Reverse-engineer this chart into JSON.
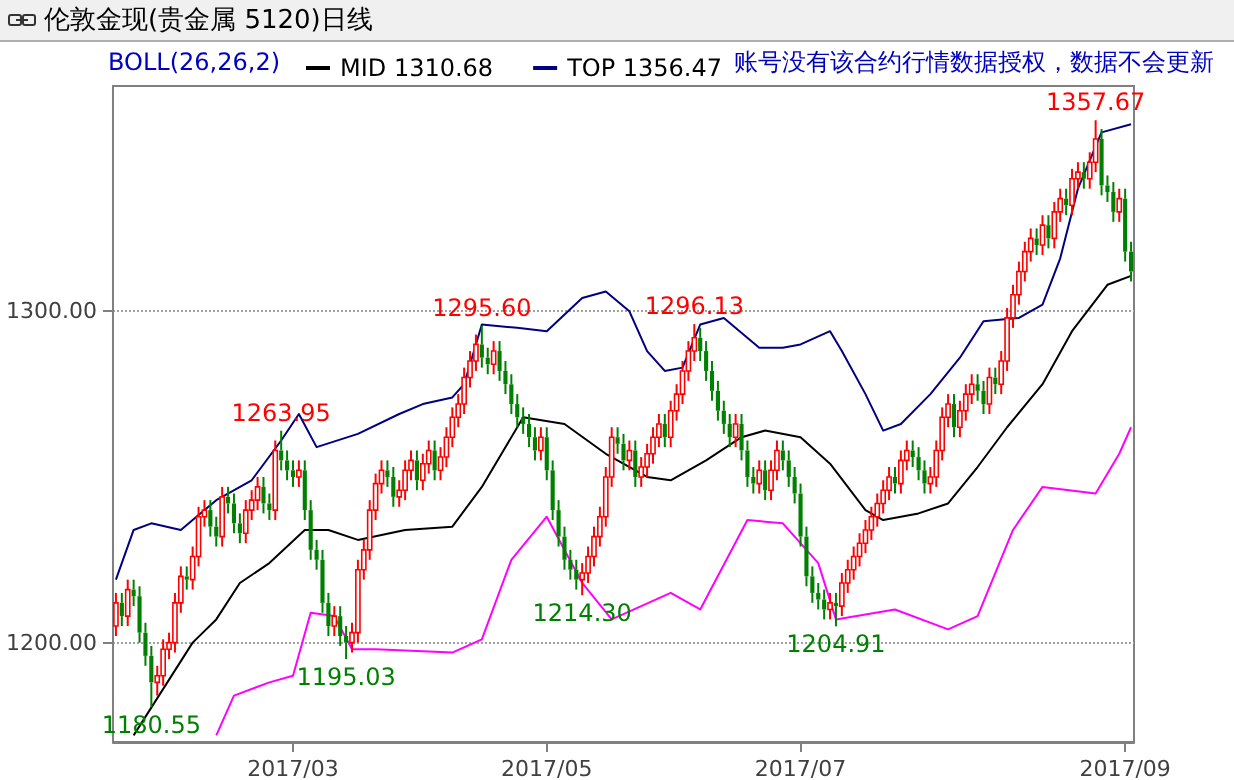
{
  "chart_data": {
    "type": "candlestick",
    "title": "伦敦金现(贵金属 5120)日线",
    "legend_title": "BOLL(26,26,2)",
    "legend": "top left",
    "grid": "y",
    "categories": [
      null,
      null,
      null,
      null,
      null,
      null,
      null,
      null,
      null,
      null,
      null,
      null,
      null,
      null,
      null,
      null,
      null,
      null,
      null,
      null,
      null,
      null,
      null,
      null,
      null,
      null,
      null,
      null,
      null,
      null,
      "2017/03",
      null,
      null,
      null,
      null,
      null,
      null,
      null,
      null,
      null,
      null,
      null,
      null,
      null,
      null,
      null,
      null,
      null,
      null,
      null,
      null,
      null,
      null,
      null,
      null,
      null,
      null,
      null,
      null,
      null,
      null,
      null,
      null,
      null,
      null,
      null,
      null,
      null,
      null,
      null,
      null,
      null,
      null,
      "2017/05",
      null,
      null,
      null,
      null,
      null,
      null,
      null,
      null,
      null,
      null,
      null,
      null,
      null,
      null,
      null,
      null,
      null,
      null,
      null,
      null,
      null,
      null,
      null,
      null,
      null,
      null,
      null,
      null,
      null,
      null,
      null,
      null,
      null,
      null,
      null,
      null,
      null,
      null,
      null,
      null,
      null,
      null,
      "2017/07",
      null,
      null,
      null,
      null,
      null,
      null,
      null,
      null,
      null,
      null,
      null,
      null,
      null,
      null,
      null,
      null,
      null,
      null,
      null,
      null,
      null,
      null,
      null,
      null,
      null,
      null,
      null,
      null,
      null,
      null,
      null,
      null,
      null,
      null,
      null,
      null,
      null,
      null,
      null,
      null,
      null,
      null,
      null,
      null,
      null,
      null,
      null,
      null,
      null,
      null,
      null,
      null,
      null,
      null,
      "2017/09",
      null
    ],
    "ylim": [
      1170,
      1368
    ],
    "yticks": [
      {
        "value": 1200,
        "label": "1200.00"
      },
      {
        "value": 1300,
        "label": "1300.00"
      }
    ],
    "colors": [
      "#ff0000",
      "#008000",
      "#ff0000",
      "#008000",
      "#008000",
      "#008000",
      "#008000",
      "#ff0000",
      "#ff0000",
      "#ff0000",
      "#ff0000",
      "#ff0000",
      "#008000",
      "#ff0000",
      "#ff0000",
      "#ff0000",
      "#008000",
      "#008000",
      "#ff0000",
      "#008000",
      "#008000",
      "#008000",
      "#ff0000",
      "#ff0000",
      "#ff0000",
      "#008000",
      "#008000",
      "#ff0000",
      "#008000",
      "#008000",
      "#008000",
      "#ff0000",
      "#008000",
      "#008000",
      "#008000",
      "#008000",
      "#008000",
      "#ff0000",
      "#008000",
      "#008000",
      "#ff0000",
      "#ff0000",
      "#ff0000",
      "#ff0000",
      "#ff0000",
      "#ff0000",
      "#008000",
      "#008000",
      "#ff0000",
      "#ff0000",
      "#ff0000",
      "#008000",
      "#ff0000",
      "#ff0000",
      "#008000",
      "#ff0000",
      "#ff0000",
      "#ff0000",
      "#ff0000",
      "#ff0000",
      "#ff0000",
      "#ff0000",
      "#008000",
      "#008000",
      "#ff0000",
      "#008000",
      "#008000",
      "#008000",
      "#008000",
      "#008000",
      "#008000",
      "#008000",
      "#ff0000",
      "#008000",
      "#008000",
      "#008000",
      "#008000",
      "#008000",
      "#008000",
      "#ff0000",
      "#ff0000",
      "#ff0000",
      "#ff0000",
      "#ff0000",
      "#ff0000",
      "#008000",
      "#008000",
      "#ff0000",
      "#008000",
      "#ff0000",
      "#ff0000",
      "#ff0000",
      "#ff0000",
      "#008000",
      "#ff0000",
      "#ff0000",
      "#ff0000",
      "#ff0000",
      "#ff0000",
      "#008000",
      "#008000",
      "#008000",
      "#008000",
      "#008000",
      "#008000",
      "#ff0000",
      "#008000",
      "#008000",
      "#008000",
      "#ff0000",
      "#008000",
      "#ff0000",
      "#ff0000",
      "#008000",
      "#008000",
      "#008000",
      "#008000",
      "#008000",
      "#008000",
      "#008000",
      "#008000",
      "#ff0000",
      "#008000",
      "#ff0000",
      "#ff0000",
      "#ff0000",
      "#ff0000",
      "#ff0000",
      "#ff0000",
      "#ff0000",
      "#ff0000",
      "#ff0000",
      "#008000",
      "#ff0000",
      "#ff0000",
      "#008000",
      "#008000",
      "#008000",
      "#ff0000",
      "#ff0000",
      "#ff0000",
      "#ff0000",
      "#008000",
      "#ff0000",
      "#ff0000",
      "#ff0000",
      "#008000",
      "#008000",
      "#ff0000",
      "#008000",
      "#ff0000",
      "#ff0000",
      "#ff0000",
      "#ff0000",
      "#ff0000",
      "#ff0000",
      "#008000",
      "#ff0000",
      "#008000",
      "#ff0000",
      "#ff0000",
      "#008000",
      "#ff0000",
      "#ff0000",
      "#008000",
      "#ff0000",
      "#ff0000",
      "#008000",
      "#008000",
      "#008000",
      "#ff0000",
      "#008000",
      "#008000"
    ],
    "ohlc": [
      [
        1205,
        1215,
        1202,
        1212
      ],
      [
        1212,
        1215,
        1205,
        1208
      ],
      [
        1208,
        1219,
        1205,
        1216
      ],
      [
        1216,
        1219,
        1211,
        1214
      ],
      [
        1214,
        1217,
        1200,
        1203
      ],
      [
        1203,
        1206,
        1193,
        1196
      ],
      [
        1196,
        1199,
        1180.55,
        1188
      ],
      [
        1188,
        1193,
        1184,
        1190
      ],
      [
        1190,
        1201,
        1187,
        1198
      ],
      [
        1198,
        1203,
        1195,
        1200
      ],
      [
        1200,
        1215,
        1197,
        1212
      ],
      [
        1212,
        1223,
        1209,
        1220
      ],
      [
        1220,
        1223,
        1216,
        1219
      ],
      [
        1219,
        1229,
        1216,
        1226
      ],
      [
        1226,
        1241,
        1223,
        1238
      ],
      [
        1238,
        1243,
        1235,
        1240
      ],
      [
        1240,
        1243,
        1232,
        1235
      ],
      [
        1235,
        1238,
        1229,
        1232
      ],
      [
        1232,
        1247,
        1229,
        1244
      ],
      [
        1244,
        1247,
        1239,
        1242
      ],
      [
        1242,
        1245,
        1233,
        1236
      ],
      [
        1236,
        1239,
        1230,
        1233
      ],
      [
        1233,
        1243,
        1230,
        1240
      ],
      [
        1240,
        1246,
        1237,
        1243
      ],
      [
        1243,
        1250,
        1240,
        1247
      ],
      [
        1247,
        1250,
        1239,
        1242
      ],
      [
        1242,
        1245,
        1237,
        1240
      ],
      [
        1240,
        1261,
        1237,
        1258
      ],
      [
        1258,
        1263.95,
        1252,
        1255
      ],
      [
        1255,
        1258,
        1249,
        1252
      ],
      [
        1252,
        1255,
        1247,
        1250
      ],
      [
        1250,
        1255,
        1247,
        1252
      ],
      [
        1252,
        1255,
        1237,
        1240
      ],
      [
        1240,
        1243,
        1225,
        1228
      ],
      [
        1228,
        1231,
        1222,
        1225
      ],
      [
        1225,
        1228,
        1209,
        1212
      ],
      [
        1212,
        1215,
        1202,
        1205
      ],
      [
        1205,
        1211,
        1202,
        1208
      ],
      [
        1208,
        1211,
        1199,
        1202
      ],
      [
        1202,
        1205,
        1195.03,
        1200
      ],
      [
        1200,
        1206,
        1197,
        1203
      ],
      [
        1203,
        1225,
        1200,
        1222
      ],
      [
        1222,
        1231,
        1219,
        1228
      ],
      [
        1228,
        1243,
        1225,
        1240
      ],
      [
        1240,
        1251,
        1237,
        1248
      ],
      [
        1248,
        1255,
        1245,
        1252
      ],
      [
        1252,
        1255,
        1247,
        1250
      ],
      [
        1250,
        1253,
        1241,
        1244
      ],
      [
        1244,
        1249,
        1241,
        1246
      ],
      [
        1246,
        1255,
        1243,
        1252
      ],
      [
        1252,
        1258,
        1249,
        1255
      ],
      [
        1255,
        1258,
        1246,
        1249
      ],
      [
        1249,
        1257,
        1246,
        1254
      ],
      [
        1254,
        1261,
        1251,
        1258
      ],
      [
        1258,
        1261,
        1249,
        1252
      ],
      [
        1252,
        1259,
        1249,
        1256
      ],
      [
        1256,
        1265,
        1253,
        1262
      ],
      [
        1262,
        1271,
        1259,
        1268
      ],
      [
        1268,
        1275,
        1265,
        1272
      ],
      [
        1272,
        1283,
        1269,
        1280
      ],
      [
        1280,
        1288,
        1277,
        1285
      ],
      [
        1285,
        1293,
        1282,
        1290
      ],
      [
        1290,
        1295.6,
        1283,
        1286
      ],
      [
        1286,
        1289,
        1281,
        1284
      ],
      [
        1284,
        1291,
        1281,
        1288
      ],
      [
        1288,
        1291,
        1279,
        1282
      ],
      [
        1282,
        1285,
        1275,
        1278
      ],
      [
        1278,
        1281,
        1269,
        1272
      ],
      [
        1272,
        1275,
        1265,
        1268
      ],
      [
        1268,
        1271,
        1263,
        1266
      ],
      [
        1266,
        1269,
        1259,
        1262
      ],
      [
        1262,
        1265,
        1255,
        1258
      ],
      [
        1258,
        1265,
        1255,
        1262
      ],
      [
        1262,
        1265,
        1249,
        1252
      ],
      [
        1252,
        1255,
        1237,
        1240
      ],
      [
        1240,
        1243,
        1229,
        1232
      ],
      [
        1232,
        1235,
        1222,
        1225
      ],
      [
        1225,
        1228,
        1219,
        1222
      ],
      [
        1222,
        1225,
        1216,
        1219
      ],
      [
        1219,
        1224,
        1214.3,
        1221
      ],
      [
        1221,
        1229,
        1218,
        1226
      ],
      [
        1226,
        1235,
        1223,
        1232
      ],
      [
        1232,
        1241,
        1229,
        1238
      ],
      [
        1238,
        1253,
        1235,
        1250
      ],
      [
        1250,
        1265,
        1247,
        1262
      ],
      [
        1262,
        1265,
        1257,
        1260
      ],
      [
        1260,
        1263,
        1252,
        1255
      ],
      [
        1255,
        1261,
        1252,
        1258
      ],
      [
        1258,
        1261,
        1247,
        1250
      ],
      [
        1250,
        1256,
        1247,
        1253
      ],
      [
        1253,
        1260,
        1250,
        1257
      ],
      [
        1257,
        1265,
        1254,
        1262
      ],
      [
        1262,
        1269,
        1259,
        1266
      ],
      [
        1266,
        1269,
        1259,
        1262
      ],
      [
        1262,
        1273,
        1259,
        1270
      ],
      [
        1270,
        1278,
        1267,
        1275
      ],
      [
        1275,
        1285,
        1272,
        1282
      ],
      [
        1282,
        1291,
        1279,
        1288
      ],
      [
        1288,
        1296.13,
        1285,
        1292
      ],
      [
        1292,
        1295,
        1285,
        1288
      ],
      [
        1288,
        1291,
        1279,
        1282
      ],
      [
        1282,
        1285,
        1273,
        1276
      ],
      [
        1276,
        1279,
        1267,
        1270
      ],
      [
        1270,
        1273,
        1263,
        1266
      ],
      [
        1266,
        1269,
        1259,
        1262
      ],
      [
        1262,
        1269,
        1259,
        1266
      ],
      [
        1266,
        1269,
        1255,
        1258
      ],
      [
        1258,
        1261,
        1247,
        1250
      ],
      [
        1250,
        1253,
        1245,
        1248
      ],
      [
        1248,
        1255,
        1245,
        1252
      ],
      [
        1252,
        1255,
        1243,
        1246
      ],
      [
        1246,
        1255,
        1243,
        1252
      ],
      [
        1252,
        1261,
        1249,
        1258
      ],
      [
        1258,
        1261,
        1252,
        1255
      ],
      [
        1255,
        1258,
        1247,
        1250
      ],
      [
        1250,
        1253,
        1242,
        1245
      ],
      [
        1245,
        1248,
        1229,
        1232
      ],
      [
        1232,
        1235,
        1217,
        1220
      ],
      [
        1220,
        1223,
        1212,
        1215
      ],
      [
        1215,
        1218,
        1210,
        1213
      ],
      [
        1213,
        1216,
        1207,
        1210
      ],
      [
        1210,
        1215,
        1207,
        1212
      ],
      [
        1212,
        1215,
        1204.91,
        1211
      ],
      [
        1211,
        1221,
        1208,
        1218
      ],
      [
        1218,
        1225,
        1215,
        1222
      ],
      [
        1222,
        1229,
        1219,
        1226
      ],
      [
        1226,
        1233,
        1223,
        1230
      ],
      [
        1230,
        1237,
        1227,
        1234
      ],
      [
        1234,
        1241,
        1231,
        1238
      ],
      [
        1238,
        1245,
        1235,
        1242
      ],
      [
        1242,
        1249,
        1239,
        1246
      ],
      [
        1246,
        1253,
        1243,
        1250
      ],
      [
        1250,
        1253,
        1245,
        1248
      ],
      [
        1248,
        1258,
        1245,
        1255
      ],
      [
        1255,
        1261,
        1252,
        1258
      ],
      [
        1258,
        1261,
        1253,
        1256
      ],
      [
        1256,
        1259,
        1249,
        1252
      ],
      [
        1252,
        1255,
        1245,
        1248
      ],
      [
        1248,
        1253,
        1245,
        1250
      ],
      [
        1250,
        1261,
        1247,
        1258
      ],
      [
        1258,
        1271,
        1255,
        1268
      ],
      [
        1268,
        1275,
        1265,
        1272
      ],
      [
        1272,
        1275,
        1262,
        1265
      ],
      [
        1265,
        1273,
        1262,
        1270
      ],
      [
        1270,
        1278,
        1267,
        1275
      ],
      [
        1275,
        1281,
        1272,
        1278
      ],
      [
        1278,
        1281,
        1273,
        1276
      ],
      [
        1276,
        1279,
        1269,
        1272
      ],
      [
        1272,
        1283,
        1269,
        1280
      ],
      [
        1280,
        1283,
        1275,
        1278
      ],
      [
        1278,
        1288,
        1275,
        1285
      ],
      [
        1285,
        1301,
        1282,
        1298
      ],
      [
        1298,
        1308,
        1295,
        1305
      ],
      [
        1305,
        1315,
        1302,
        1312
      ],
      [
        1312,
        1321,
        1309,
        1318
      ],
      [
        1318,
        1325,
        1315,
        1322
      ],
      [
        1322,
        1325,
        1317,
        1320
      ],
      [
        1320,
        1329,
        1317,
        1326
      ],
      [
        1326,
        1329,
        1319,
        1322
      ],
      [
        1322,
        1333,
        1319,
        1330
      ],
      [
        1330,
        1337,
        1327,
        1334
      ],
      [
        1334,
        1337,
        1329,
        1332
      ],
      [
        1332,
        1343,
        1329,
        1340
      ],
      [
        1340,
        1345,
        1337,
        1342
      ],
      [
        1342,
        1345,
        1337,
        1340
      ],
      [
        1340,
        1348,
        1337,
        1345
      ],
      [
        1345,
        1357.67,
        1342,
        1352
      ],
      [
        1352,
        1355,
        1335,
        1338
      ],
      [
        1338,
        1341,
        1333,
        1336
      ],
      [
        1336,
        1339,
        1327,
        1330
      ],
      [
        1330,
        1337,
        1327,
        1334
      ],
      [
        1334,
        1337,
        1315,
        1318
      ],
      [
        1318,
        1321,
        1309,
        1312
      ]
    ],
    "series": [
      {
        "type": "line",
        "name": "MID 1310.68",
        "color": "#000000",
        "values": [
          null,
          null,
          null,
          1172,
          null,
          null,
          null,
          null,
          null,
          null,
          null,
          null,
          null,
          1200,
          null,
          null,
          null,
          1207,
          null,
          null,
          null,
          1218,
          null,
          null,
          null,
          null,
          1224,
          null,
          null,
          null,
          null,
          null,
          1234,
          null,
          null,
          null,
          1234,
          null,
          null,
          null,
          null,
          1231,
          null,
          null,
          null,
          null,
          null,
          null,
          null,
          1234,
          null,
          null,
          null,
          null,
          null,
          null,
          null,
          1235,
          null,
          null,
          null,
          null,
          1247,
          null,
          null,
          null,
          null,
          null,
          null,
          1268,
          null,
          null,
          null,
          null,
          null,
          null,
          1266,
          null,
          null,
          null,
          null,
          null,
          null,
          1257,
          null,
          null,
          null,
          null,
          null,
          null,
          1250,
          null,
          null,
          null,
          1249,
          null,
          null,
          null,
          null,
          null,
          1255,
          null,
          null,
          null,
          null,
          null,
          1262,
          null,
          null,
          null,
          1264,
          null,
          null,
          null,
          null,
          null,
          1262,
          null,
          null,
          null,
          null,
          1254,
          null,
          null,
          null,
          null,
          null,
          1240,
          null,
          null,
          1237,
          null,
          null,
          null,
          null,
          null,
          1239,
          null,
          null,
          null,
          null,
          1242,
          null,
          null,
          null,
          null,
          1253,
          null,
          null,
          null,
          null,
          1265,
          null,
          null,
          null,
          null,
          null,
          1278,
          null,
          null,
          null,
          null,
          1294,
          null,
          null,
          null,
          null,
          null,
          1308,
          null,
          null,
          null,
          1310.68
        ]
      },
      {
        "type": "line",
        "name": "TOP 1356.47",
        "color": "#000080",
        "values": [
          1219,
          null,
          null,
          1234,
          null,
          null,
          1236,
          null,
          null,
          null,
          null,
          1234,
          null,
          1237,
          null,
          null,
          null,
          1243,
          null,
          null,
          null,
          null,
          null,
          1249,
          null,
          null,
          null,
          null,
          1261,
          null,
          null,
          1269,
          null,
          null,
          1259,
          null,
          null,
          null,
          null,
          null,
          null,
          1263,
          null,
          null,
          null,
          null,
          null,
          null,
          1269,
          null,
          null,
          null,
          1272,
          null,
          null,
          null,
          null,
          1274,
          null,
          1278,
          null,
          null,
          1296,
          null,
          null,
          null,
          null,
          null,
          1295,
          null,
          null,
          null,
          null,
          1294,
          null,
          null,
          null,
          null,
          null,
          1304,
          null,
          null,
          null,
          1306,
          null,
          null,
          null,
          1300,
          null,
          null,
          1288,
          null,
          null,
          1282,
          null,
          null,
          1283,
          null,
          null,
          1296,
          null,
          null,
          null,
          1298,
          null,
          null,
          null,
          null,
          null,
          1289,
          null,
          null,
          null,
          1289,
          null,
          null,
          1290,
          null,
          null,
          null,
          null,
          1294,
          null,
          1288,
          null,
          null,
          null,
          1275,
          null,
          null,
          1264,
          null,
          null,
          1266,
          null,
          null,
          null,
          null,
          1275,
          null,
          null,
          null,
          null,
          1286,
          null,
          null,
          null,
          1297,
          null,
          null,
          null,
          null,
          null,
          1298,
          null,
          null,
          null,
          1302,
          null,
          null,
          1316,
          null,
          null,
          1337,
          null,
          null,
          null,
          1354,
          null,
          null,
          null,
          null,
          1356.47
        ]
      },
      {
        "type": "line",
        "color": "#ff00ff",
        "values": [
          null,
          null,
          null,
          null,
          null,
          null,
          null,
          null,
          null,
          null,
          null,
          null,
          null,
          null,
          null,
          null,
          null,
          1172,
          null,
          null,
          1184,
          null,
          null,
          null,
          null,
          null,
          1188,
          null,
          null,
          null,
          1190,
          null,
          null,
          1209,
          null,
          null,
          null,
          1208,
          null,
          null,
          1198,
          null,
          null,
          null,
          1198,
          null,
          null,
          null,
          null,
          null,
          null,
          null,
          null,
          null,
          null,
          null,
          null,
          1197,
          null,
          null,
          null,
          null,
          1201,
          null,
          null,
          null,
          null,
          1225,
          null,
          null,
          null,
          null,
          null,
          1238,
          null,
          null,
          null,
          null,
          null,
          1218,
          null,
          null,
          null,
          null,
          1207,
          null,
          null,
          null,
          null,
          null,
          null,
          null,
          null,
          null,
          1215,
          null,
          null,
          null,
          null,
          1210,
          null,
          null,
          null,
          null,
          null,
          null,
          null,
          1237,
          null,
          null,
          null,
          null,
          null,
          1236,
          null,
          null,
          null,
          null,
          null,
          1224,
          null,
          null,
          1207,
          null,
          null,
          null,
          null,
          null,
          null,
          null,
          null,
          null,
          1210,
          null,
          null,
          null,
          null,
          null,
          null,
          null,
          null,
          1204,
          null,
          null,
          null,
          null,
          1208,
          null,
          null,
          null,
          null,
          null,
          1234,
          null,
          null,
          null,
          null,
          1247,
          null,
          null,
          null,
          null,
          null,
          null,
          null,
          null,
          1245,
          null,
          null,
          null,
          1257,
          null,
          1265
        ]
      }
    ],
    "annotations": [
      {
        "text": "1263.95",
        "y": 1263.95
      },
      {
        "text": "1195.03",
        "y": 1195.03
      },
      {
        "text": "1295.60",
        "y": 1295.6
      },
      {
        "text": "1214.30",
        "y": 1214.3
      },
      {
        "text": "1296.13",
        "y": 1296.13
      },
      {
        "text": "1204.91",
        "y": 1204.91
      },
      {
        "text": "1357.67",
        "y": 1357.67
      },
      {
        "text": "1180.55",
        "y": 1180.55
      },
      "账号没有该合约行情数据授权，数据不会更新"
    ]
  }
}
